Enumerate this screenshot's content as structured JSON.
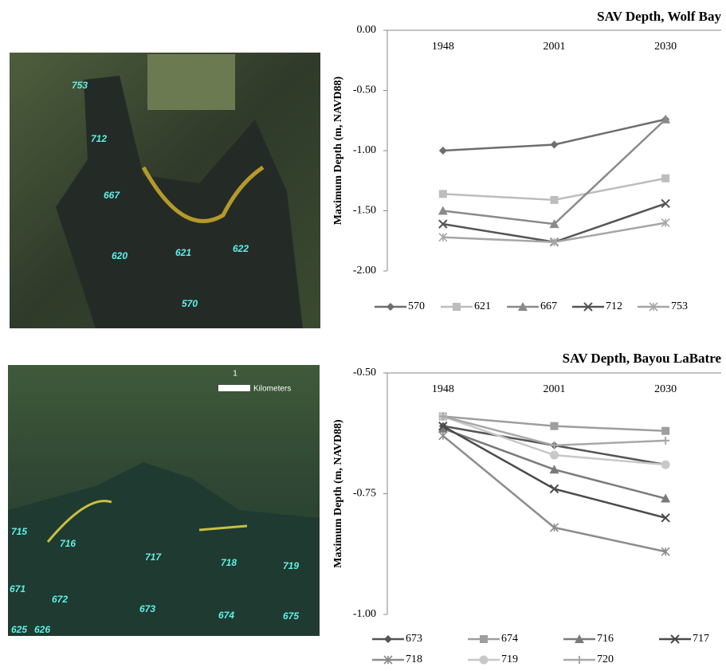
{
  "maps": [
    {
      "labels": [
        "753",
        "712",
        "667",
        "620",
        "621",
        "622",
        "570"
      ]
    },
    {
      "scale": {
        "value": "1",
        "unit": "Kilometers"
      },
      "labels": [
        "715",
        "716",
        "717",
        "718",
        "719",
        "671",
        "672",
        "673",
        "674",
        "675",
        "625",
        "626"
      ]
    }
  ],
  "chart_data": [
    {
      "type": "line",
      "title": "SAV Depth, Wolf Bay",
      "y_label": "Maximum Depth (m, NAVD88)",
      "categories": [
        "1948",
        "2001",
        "2030"
      ],
      "ylim": [
        -2,
        0
      ],
      "yticks": [
        {
          "value": 0,
          "label": "0.00"
        },
        {
          "value": -0.5,
          "label": "-0.50"
        },
        {
          "value": -1,
          "label": "-1.00"
        },
        {
          "value": -1.5,
          "label": "-1.50"
        },
        {
          "value": -2,
          "label": "-2.00"
        }
      ],
      "grid": false,
      "legend": "bottom",
      "series": [
        {
          "name": "570",
          "color": "#6e6e6e",
          "marker": "diamond",
          "values": [
            -1.0,
            -0.95,
            -0.74
          ]
        },
        {
          "name": "621",
          "color": "#bdbdbd",
          "marker": "square",
          "values": [
            -1.36,
            -1.41,
            -1.23
          ]
        },
        {
          "name": "667",
          "color": "#8a8a8a",
          "marker": "triangle",
          "values": [
            -1.5,
            -1.61,
            -0.74
          ]
        },
        {
          "name": "712",
          "color": "#555555",
          "marker": "x",
          "values": [
            -1.61,
            -1.76,
            -1.44
          ]
        },
        {
          "name": "753",
          "color": "#a6a6a6",
          "marker": "star",
          "values": [
            -1.72,
            -1.76,
            -1.6
          ]
        }
      ]
    },
    {
      "type": "line",
      "title": "SAV Depth, Bayou LaBatre",
      "y_label": "Maximum Depth (m, NAVD88)",
      "categories": [
        "1948",
        "2001",
        "2030"
      ],
      "ylim": [
        -1,
        -0.5
      ],
      "yticks": [
        {
          "value": -0.5,
          "label": "-0.50"
        },
        {
          "value": -0.75,
          "label": "-0.75"
        },
        {
          "value": -1,
          "label": "-1.00"
        }
      ],
      "grid": false,
      "legend": "bottom",
      "series": [
        {
          "name": "673",
          "color": "#555555",
          "marker": "diamond",
          "values": [
            -0.61,
            -0.65,
            -0.69
          ]
        },
        {
          "name": "674",
          "color": "#9e9e9e",
          "marker": "square",
          "values": [
            -0.59,
            -0.61,
            -0.62
          ]
        },
        {
          "name": "716",
          "color": "#7a7a7a",
          "marker": "triangle",
          "values": [
            -0.615,
            -0.7,
            -0.76
          ]
        },
        {
          "name": "717",
          "color": "#4a4a4a",
          "marker": "x",
          "values": [
            -0.61,
            -0.74,
            -0.8
          ]
        },
        {
          "name": "718",
          "color": "#8c8c8c",
          "marker": "star",
          "values": [
            -0.63,
            -0.82,
            -0.87
          ]
        },
        {
          "name": "719",
          "color": "#c8c8c8",
          "marker": "circle",
          "values": [
            -0.59,
            -0.67,
            -0.69
          ]
        },
        {
          "name": "720",
          "color": "#a8a8a8",
          "marker": "plus",
          "values": [
            -0.59,
            -0.65,
            -0.64
          ]
        }
      ]
    }
  ]
}
